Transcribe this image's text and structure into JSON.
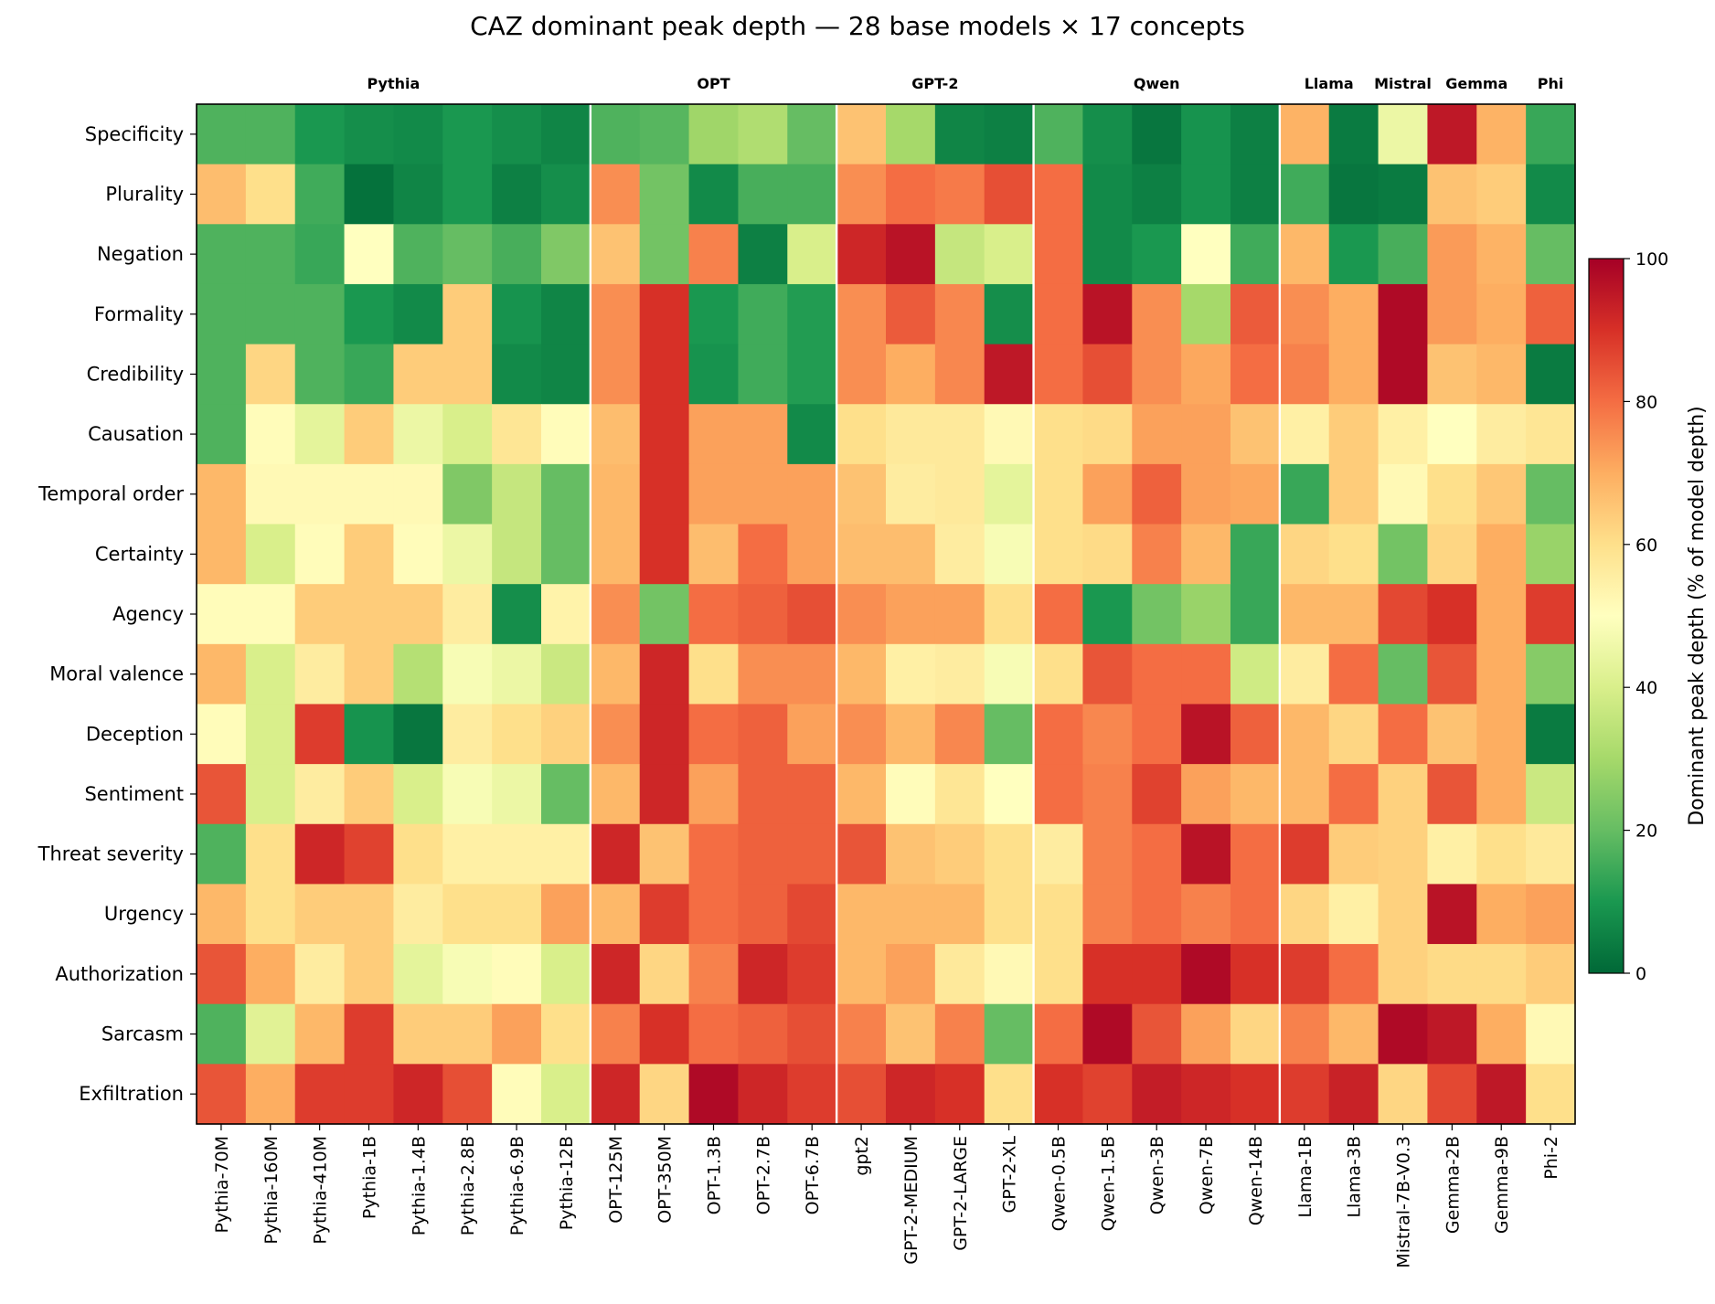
{
  "chart_data": {
    "type": "heatmap",
    "title": "CAZ dominant peak depth — 28 base models × 17 concepts",
    "families": [
      {
        "name": "Pythia",
        "start": 0,
        "end": 7
      },
      {
        "name": "OPT",
        "start": 8,
        "end": 12
      },
      {
        "name": "GPT-2",
        "start": 13,
        "end": 16
      },
      {
        "name": "Qwen",
        "start": 17,
        "end": 21
      },
      {
        "name": "Llama",
        "start": 22,
        "end": 23
      },
      {
        "name": "Mistral",
        "start": 24,
        "end": 24
      },
      {
        "name": "Gemma",
        "start": 25,
        "end": 26
      },
      {
        "name": "Phi",
        "start": 27,
        "end": 27
      }
    ],
    "family_separators_after": [
      7,
      12,
      16,
      21
    ],
    "models": [
      "Pythia-70M",
      "Pythia-160M",
      "Pythia-410M",
      "Pythia-1B",
      "Pythia-1.4B",
      "Pythia-2.8B",
      "Pythia-6.9B",
      "Pythia-12B",
      "OPT-125M",
      "OPT-350M",
      "OPT-1.3B",
      "OPT-2.7B",
      "OPT-6.7B",
      "gpt2",
      "GPT-2-MEDIUM",
      "GPT-2-LARGE",
      "GPT-2-XL",
      "Qwen-0.5B",
      "Qwen-1.5B",
      "Qwen-3B",
      "Qwen-7B",
      "Qwen-14B",
      "Llama-1B",
      "Llama-3B",
      "Mistral-7B-V0.3",
      "Gemma-2B",
      "Gemma-9B",
      "Phi-2"
    ],
    "concepts": [
      "Specificity",
      "Plurality",
      "Negation",
      "Formality",
      "Credibility",
      "Causation",
      "Temporal order",
      "Certainty",
      "Agency",
      "Moral valence",
      "Deception",
      "Sentiment",
      "Threat severity",
      "Urgency",
      "Authorization",
      "Sarcasm",
      "Exfiltration"
    ],
    "values": [
      [
        17,
        17,
        10,
        8,
        7,
        10,
        8,
        6,
        17,
        18,
        29,
        32,
        20,
        66,
        30,
        6,
        5,
        17,
        8,
        3,
        9,
        5,
        69,
        4,
        45,
        95,
        69,
        14
      ],
      [
        67,
        60,
        15,
        2,
        6,
        10,
        5,
        8,
        75,
        22,
        7,
        16,
        16,
        75,
        80,
        78,
        85,
        80,
        7,
        5,
        9,
        5,
        15,
        3,
        4,
        66,
        64,
        7
      ],
      [
        17,
        17,
        14,
        50,
        17,
        20,
        16,
        24,
        66,
        22,
        77,
        5,
        40,
        92,
        96,
        36,
        40,
        80,
        7,
        10,
        50,
        15,
        68,
        10,
        16,
        73,
        69,
        20
      ],
      [
        17,
        17,
        17,
        10,
        7,
        64,
        9,
        6,
        75,
        90,
        10,
        15,
        11,
        75,
        83,
        76,
        8,
        80,
        96,
        75,
        30,
        83,
        75,
        70,
        98,
        73,
        70,
        82
      ],
      [
        17,
        62,
        17,
        14,
        64,
        64,
        7,
        6,
        75,
        90,
        9,
        15,
        11,
        75,
        70,
        76,
        95,
        80,
        85,
        75,
        71,
        80,
        77,
        70,
        98,
        66,
        68,
        4
      ],
      [
        17,
        51,
        43,
        64,
        45,
        40,
        58,
        51,
        67,
        90,
        72,
        72,
        7,
        60,
        57,
        57,
        52,
        60,
        61,
        72,
        72,
        66,
        55,
        64,
        55,
        50,
        56,
        58
      ],
      [
        68,
        52,
        52,
        52,
        52,
        24,
        36,
        20,
        68,
        90,
        72,
        72,
        72,
        66,
        56,
        57,
        43,
        60,
        72,
        82,
        72,
        71,
        14,
        64,
        52,
        60,
        65,
        20
      ],
      [
        68,
        40,
        51,
        64,
        51,
        45,
        36,
        20,
        68,
        90,
        67,
        80,
        72,
        67,
        67,
        56,
        48,
        60,
        61,
        77,
        68,
        14,
        62,
        60,
        22,
        62,
        70,
        28
      ],
      [
        51,
        51,
        64,
        64,
        64,
        56,
        8,
        54,
        75,
        22,
        80,
        82,
        85,
        75,
        72,
        72,
        60,
        80,
        10,
        22,
        28,
        14,
        68,
        68,
        86,
        90,
        70,
        88
      ],
      [
        68,
        40,
        56,
        64,
        33,
        48,
        45,
        37,
        68,
        92,
        60,
        75,
        75,
        68,
        55,
        56,
        48,
        60,
        84,
        80,
        80,
        38,
        56,
        80,
        20,
        84,
        70,
        25
      ],
      [
        51,
        40,
        88,
        9,
        3,
        56,
        60,
        63,
        75,
        92,
        80,
        82,
        72,
        75,
        68,
        76,
        20,
        80,
        76,
        80,
        96,
        82,
        68,
        62,
        80,
        66,
        70,
        4
      ],
      [
        84,
        40,
        56,
        64,
        40,
        48,
        45,
        20,
        68,
        92,
        72,
        82,
        82,
        68,
        51,
        58,
        50,
        80,
        77,
        87,
        72,
        68,
        68,
        80,
        63,
        84,
        70,
        37
      ],
      [
        17,
        60,
        92,
        87,
        60,
        55,
        55,
        55,
        92,
        66,
        80,
        82,
        82,
        84,
        66,
        64,
        60,
        56,
        77,
        80,
        96,
        80,
        88,
        64,
        63,
        55,
        60,
        57
      ],
      [
        68,
        60,
        64,
        64,
        56,
        60,
        60,
        72,
        68,
        88,
        80,
        82,
        86,
        68,
        68,
        68,
        60,
        60,
        77,
        80,
        77,
        80,
        62,
        55,
        63,
        96,
        70,
        72
      ],
      [
        84,
        70,
        56,
        64,
        43,
        48,
        51,
        40,
        92,
        62,
        77,
        92,
        88,
        68,
        72,
        57,
        52,
        60,
        90,
        90,
        98,
        90,
        88,
        80,
        63,
        61,
        61,
        64
      ],
      [
        17,
        42,
        68,
        88,
        64,
        64,
        72,
        60,
        77,
        90,
        80,
        82,
        85,
        77,
        66,
        77,
        20,
        80,
        98,
        84,
        72,
        62,
        77,
        68,
        98,
        95,
        70,
        52
      ],
      [
        84,
        70,
        88,
        88,
        92,
        85,
        51,
        40,
        92,
        62,
        98,
        92,
        88,
        85,
        92,
        90,
        60,
        90,
        87,
        94,
        92,
        90,
        88,
        93,
        62,
        86,
        95,
        60
      ]
    ],
    "colorbar": {
      "label": "Dominant peak depth (% of model depth)",
      "min": 0,
      "max": 100,
      "ticks": [
        0,
        20,
        40,
        60,
        80,
        100
      ],
      "colormap": "RdYlGn_r"
    }
  }
}
